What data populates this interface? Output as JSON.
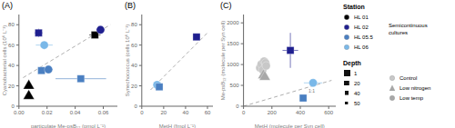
{
  "chart_data": [
    {
      "type": "scatter",
      "title": "(A)",
      "x_label": "particulate Me-psB₁₂ (pmol L⁻¹)",
      "y_label": "Cyanobacterial cells (10⁶ L⁻¹)",
      "xlim": [
        0,
        0.07
      ],
      "ylim": [
        0,
        90
      ],
      "xticks": [
        {
          "value": 0,
          "label": "0.00"
        },
        0.02,
        0.04,
        0.06
      ],
      "yticks": [
        0,
        20,
        40,
        60,
        80
      ],
      "series": [
        {
          "type": "line",
          "line_style": "dashed",
          "color": "#999999",
          "x": [
            0.003,
            0.065
          ],
          "y": [
            28,
            80
          ]
        },
        {
          "type": "scatter",
          "points": [
            {
              "x": 0.007,
              "y": 20,
              "xerr": 0.0015,
              "yerr": 0,
              "color": "#000000",
              "marker": "triangle"
            },
            {
              "x": 0.007,
              "y": 10,
              "xerr": 0.0008,
              "yerr": 0,
              "color": "#000000",
              "marker": "triangle"
            },
            {
              "x": 0.014,
              "y": 72,
              "xerr": 0.003,
              "yerr": 4,
              "color": "#1f1f8f",
              "marker": "square"
            },
            {
              "x": 0.016,
              "y": 35,
              "xerr": 0.002,
              "yerr": 2,
              "color": "#4a7fc1",
              "marker": "square"
            },
            {
              "x": 0.018,
              "y": 60,
              "xerr": 0.006,
              "yerr": 4,
              "color": "#7ab8e8",
              "marker": "circle"
            },
            {
              "x": 0.021,
              "y": 36,
              "xerr": 0.003,
              "yerr": 2,
              "color": "#4a7fc1",
              "marker": "circle"
            },
            {
              "x": 0.044,
              "y": 27,
              "xerr": 0.018,
              "yerr": 2,
              "color": "#4a7fc1",
              "marker": "square"
            },
            {
              "x": 0.054,
              "y": 70,
              "xerr": 0.004,
              "yerr": 3,
              "color": "#000000",
              "marker": "square"
            },
            {
              "x": 0.058,
              "y": 75,
              "xerr": 0.003,
              "yerr": 3,
              "color": "#1f1f8f",
              "marker": "circle"
            }
          ]
        }
      ]
    },
    {
      "type": "scatter",
      "title": "(B)",
      "x_label": "MetH (fmol L⁻¹)",
      "y_label": "Synechococcus (cells 10⁶ L⁻¹)",
      "xlim": [
        0,
        65
      ],
      "ylim": [
        0,
        90
      ],
      "xticks": [
        0,
        20,
        40,
        60
      ],
      "yticks": [
        0,
        20,
        40,
        60,
        80
      ],
      "series": [
        {
          "type": "line",
          "line_style": "dashed",
          "color": "#999999",
          "x": [
            8,
            60
          ],
          "y": [
            16,
            72
          ]
        },
        {
          "type": "scatter",
          "points": [
            {
              "x": 14,
              "y": 21,
              "xerr": 1,
              "yerr": 1,
              "color": "#7ab8e8",
              "marker": "circle"
            },
            {
              "x": 16,
              "y": 19,
              "xerr": 1,
              "yerr": 1,
              "color": "#4a7fc1",
              "marker": "square"
            },
            {
              "x": 50,
              "y": 68,
              "xerr": 2,
              "yerr": 3,
              "color": "#1f1f8f",
              "marker": "square"
            }
          ]
        }
      ]
    },
    {
      "type": "scatter",
      "title": "(C)",
      "x_label": "MetH (molecule per Syn cell)",
      "y_label": "Me-psB₁₂ (molecule per Syn cell)",
      "xlim": [
        0,
        650
      ],
      "ylim": [
        0,
        2200
      ],
      "xticks": [
        0,
        200,
        400,
        600
      ],
      "yticks": [
        0,
        500,
        1000,
        1500,
        2000
      ],
      "annotations": [
        {
          "text": "1:1",
          "x": 480,
          "y": 370,
          "color": "#777777"
        }
      ],
      "series": [
        {
          "type": "line",
          "line_style": "dashed",
          "color": "#999999",
          "x": [
            0,
            620
          ],
          "y": [
            0,
            620
          ]
        },
        {
          "type": "scatter",
          "color": "#c8c8c8",
          "marker": "circle",
          "points": [
            {
              "x": 115,
              "y": 920
            },
            {
              "x": 125,
              "y": 1010
            },
            {
              "x": 135,
              "y": 870
            },
            {
              "x": 145,
              "y": 1080
            },
            {
              "x": 155,
              "y": 1040
            },
            {
              "x": 160,
              "y": 970
            }
          ]
        },
        {
          "type": "scatter",
          "color": "#a8a8a8",
          "marker": "triangle",
          "points": [
            {
              "x": 140,
              "y": 740
            },
            {
              "x": 150,
              "y": 700
            }
          ]
        },
        {
          "type": "scatter",
          "points": [
            {
              "x": 330,
              "y": 1340,
              "xerr": 55,
              "yerr": 420,
              "color": "#1f1f8f",
              "marker": "square"
            },
            {
              "x": 420,
              "y": 195,
              "xerr": 15,
              "yerr": 25,
              "color": "#4a7fc1",
              "marker": "square"
            },
            {
              "x": 490,
              "y": 560,
              "xerr": 65,
              "yerr": 85,
              "color": "#7ab8e8",
              "marker": "circle"
            }
          ]
        }
      ]
    }
  ],
  "key": {
    "station": {
      "title": "Station",
      "entries": [
        {
          "name": "HL 01",
          "color": "#000000",
          "marker": "circle"
        },
        {
          "name": "HL 02",
          "color": "#1f1f8f",
          "marker": "circle"
        },
        {
          "name": "HL 05.5",
          "color": "#4a7fc1",
          "marker": "circle"
        },
        {
          "name": "HL 06",
          "color": "#7ab8e8",
          "marker": "circle"
        }
      ]
    },
    "note": "Semicontinuous\ncultures",
    "depth": {
      "title": "Depth",
      "entries": [
        {
          "name": "1",
          "color": "#111111",
          "marker": "square"
        },
        {
          "name": "20",
          "color": "#111111",
          "marker": "square"
        },
        {
          "name": "40",
          "color": "#111111",
          "marker": "square"
        },
        {
          "name": "50",
          "color": "#111111",
          "marker": "square"
        }
      ]
    },
    "semi": {
      "entries": [
        {
          "name": "Control",
          "color": "#c8c8c8",
          "marker": "circle"
        },
        {
          "name": "Low nitrogen",
          "color": "#a8a8a8",
          "marker": "triangle"
        },
        {
          "name": "Low temp",
          "color": "#a8a8a8",
          "marker": "circle"
        }
      ]
    }
  }
}
